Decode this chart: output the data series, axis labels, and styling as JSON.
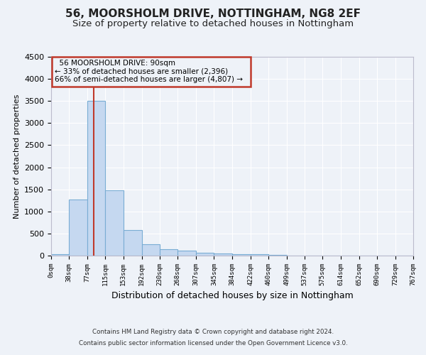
{
  "title1": "56, MOORSHOLM DRIVE, NOTTINGHAM, NG8 2EF",
  "title2": "Size of property relative to detached houses in Nottingham",
  "xlabel": "Distribution of detached houses by size in Nottingham",
  "ylabel": "Number of detached properties",
  "annotation_line1": "56 MOORSHOLM DRIVE: 90sqm",
  "annotation_line2": "← 33% of detached houses are smaller (2,396)",
  "annotation_line3": "66% of semi-detached houses are larger (4,807) →",
  "footer1": "Contains HM Land Registry data © Crown copyright and database right 2024.",
  "footer2": "Contains public sector information licensed under the Open Government Licence v3.0.",
  "bar_color": "#c5d8f0",
  "bar_edge_color": "#7aadd4",
  "vline_color": "#c0392b",
  "vline_x": 90,
  "annotation_box_color": "#c0392b",
  "bin_edges": [
    0,
    38,
    77,
    115,
    153,
    192,
    230,
    268,
    307,
    345,
    384,
    422,
    460,
    499,
    537,
    575,
    614,
    652,
    690,
    729,
    767
  ],
  "bar_heights": [
    25,
    1270,
    3500,
    1480,
    575,
    250,
    140,
    115,
    70,
    45,
    25,
    25,
    20,
    0,
    0,
    0,
    0,
    0,
    0,
    0
  ],
  "ylim": [
    0,
    4500
  ],
  "yticks": [
    0,
    500,
    1000,
    1500,
    2000,
    2500,
    3000,
    3500,
    4000,
    4500
  ],
  "background_color": "#eef2f8",
  "grid_color": "#ffffff",
  "title1_fontsize": 11,
  "title2_fontsize": 9.5
}
